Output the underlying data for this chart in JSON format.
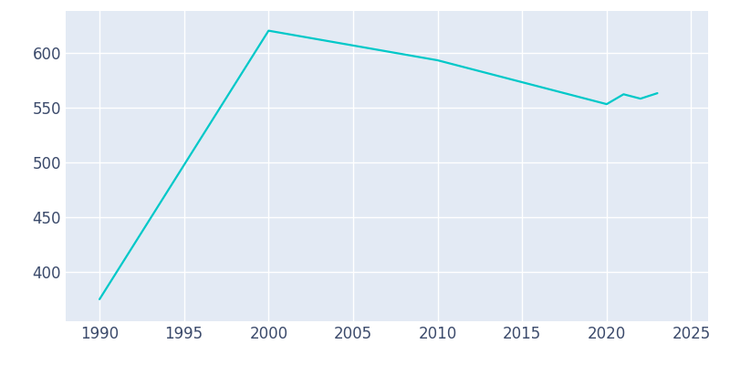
{
  "years": [
    1990,
    2000,
    2010,
    2020,
    2021,
    2022,
    2023
  ],
  "population": [
    375,
    620,
    593,
    553,
    562,
    558,
    563
  ],
  "line_color": "#00C8C8",
  "axes_bg_color": "#E3EAF4",
  "fig_bg_color": "#FFFFFF",
  "grid_color": "#FFFFFF",
  "axis_label_color": "#3B4A6B",
  "xlim": [
    1988,
    2026
  ],
  "ylim": [
    355,
    638
  ],
  "xticks": [
    1990,
    1995,
    2000,
    2005,
    2010,
    2015,
    2020,
    2025
  ],
  "yticks": [
    400,
    450,
    500,
    550,
    600
  ],
  "linewidth": 1.6,
  "tick_labelsize": 12
}
